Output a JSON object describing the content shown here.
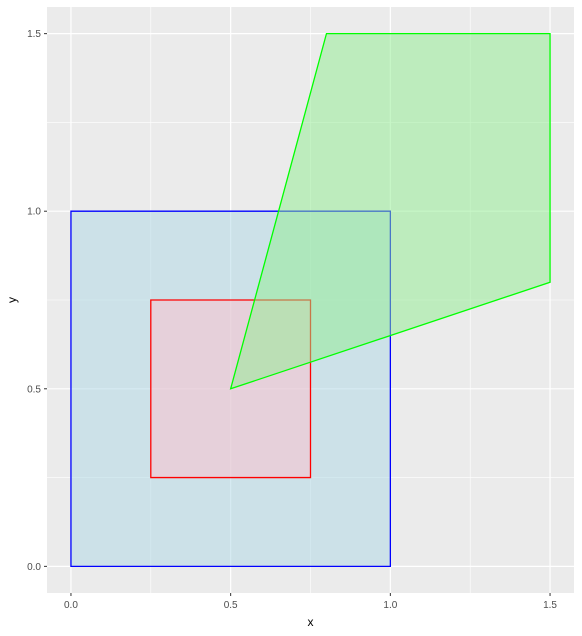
{
  "chart_data": {
    "type": "area",
    "xlabel": "x",
    "ylabel": "y",
    "xlim": [
      -0.075,
      1.575
    ],
    "ylim": [
      -0.075,
      1.575
    ],
    "x_ticks": [
      0.0,
      0.5,
      1.0,
      1.5
    ],
    "x_tick_labels": [
      "0.0",
      "0.5",
      "1.0",
      "1.5"
    ],
    "y_ticks": [
      0.0,
      0.5,
      1.0,
      1.5
    ],
    "y_tick_labels": [
      "0.0",
      "0.5",
      "1.0",
      "1.5"
    ],
    "grid": true,
    "polygons": [
      {
        "id": "blue-square",
        "stroke": "#0000ff",
        "fill": "#add8e6",
        "fill_opacity": 0.5,
        "points": [
          [
            0,
            0
          ],
          [
            1,
            0
          ],
          [
            1,
            1
          ],
          [
            0,
            1
          ]
        ]
      },
      {
        "id": "red-square",
        "stroke": "#ff0000",
        "fill": "#ffc0cb",
        "fill_opacity": 0.5,
        "points": [
          [
            0.25,
            0.25
          ],
          [
            0.75,
            0.25
          ],
          [
            0.75,
            0.75
          ],
          [
            0.25,
            0.75
          ]
        ]
      },
      {
        "id": "green-polygon",
        "stroke": "#00ff00",
        "fill": "#90ee90",
        "fill_opacity": 0.5,
        "points": [
          [
            0.5,
            0.5
          ],
          [
            0.8,
            1.5
          ],
          [
            1.5,
            1.5
          ],
          [
            1.5,
            0.8
          ]
        ]
      }
    ]
  },
  "colors": {
    "panel_background": "#ebebeb",
    "grid_major": "#ffffff",
    "tick_text": "#4d4d4d",
    "tick_mark": "#333333"
  }
}
